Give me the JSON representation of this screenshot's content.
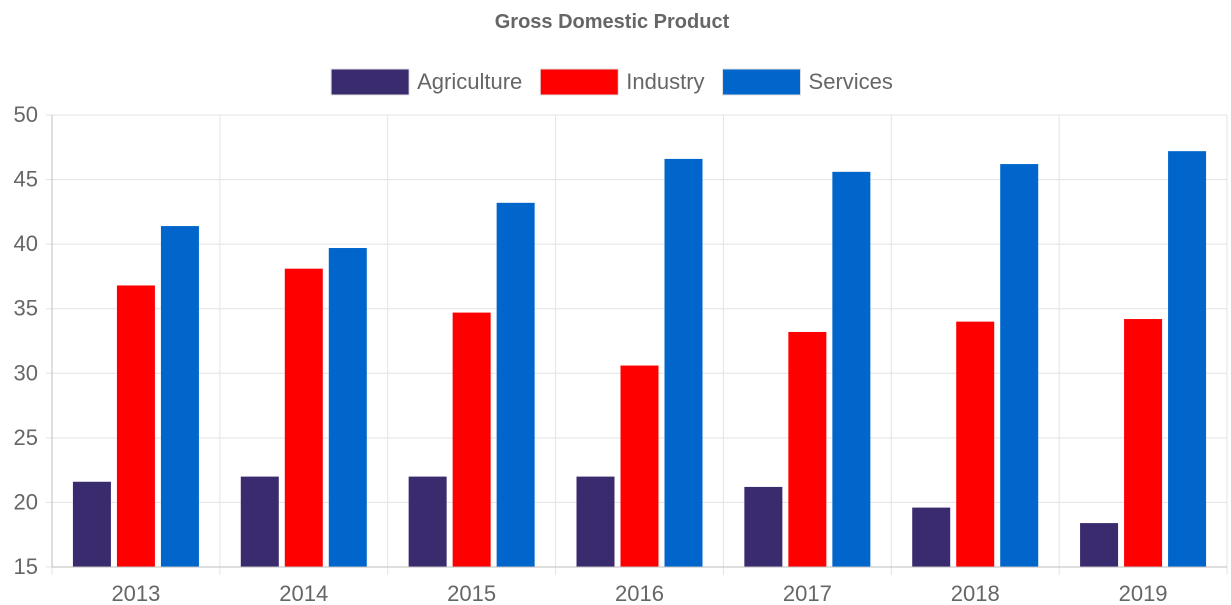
{
  "chart_data": {
    "type": "bar",
    "title": "Gross Domestic Product",
    "categories": [
      "2013",
      "2014",
      "2015",
      "2016",
      "2017",
      "2018",
      "2019"
    ],
    "series": [
      {
        "name": "Agriculture",
        "color": "#3a2a6e",
        "values": [
          21.6,
          22.0,
          22.0,
          22.0,
          21.2,
          19.6,
          18.4
        ]
      },
      {
        "name": "Industry",
        "color": "#ff0000",
        "values": [
          36.8,
          38.1,
          34.7,
          30.6,
          33.2,
          34.0,
          34.2
        ]
      },
      {
        "name": "Services",
        "color": "#0066cc",
        "values": [
          41.4,
          39.7,
          43.2,
          46.6,
          45.6,
          46.2,
          47.2
        ]
      }
    ],
    "ylim": [
      15,
      50
    ],
    "yticks": [
      "15",
      "20",
      "25",
      "30",
      "35",
      "40",
      "45",
      "50"
    ],
    "grid": true,
    "legend_position": "top-center"
  }
}
